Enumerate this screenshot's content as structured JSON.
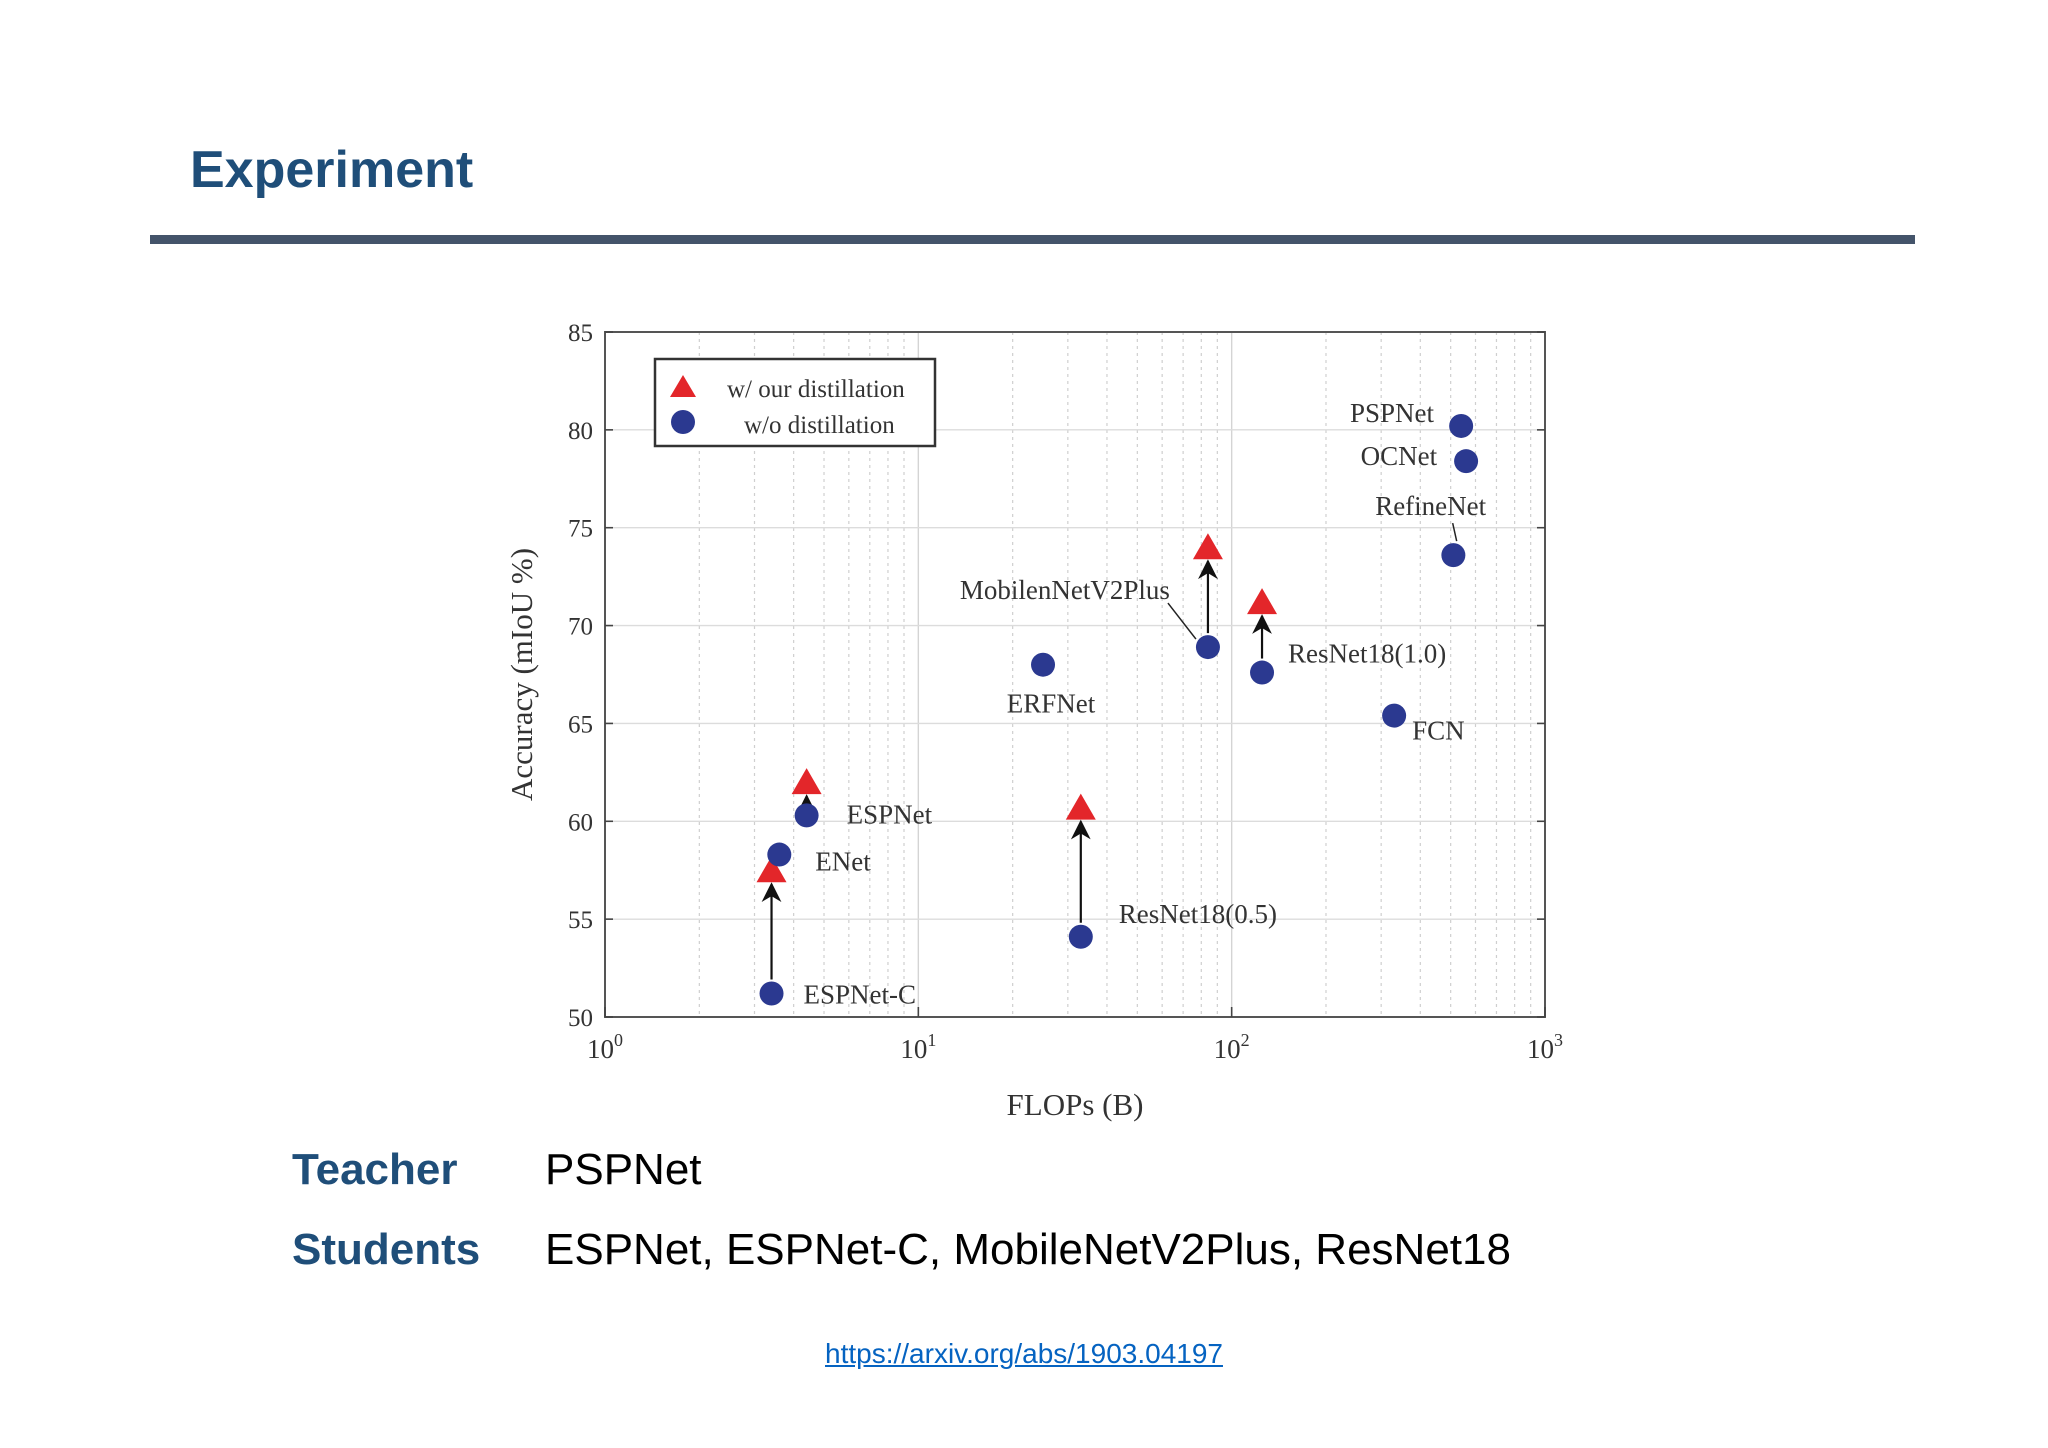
{
  "slide": {
    "title": "Experiment",
    "teacher_label": "Teacher",
    "teacher_value": "PSPNet",
    "students_label": "Students",
    "students_value": "ESPNet, ESPNet-C, MobileNetV2Plus, ResNet18",
    "link": "https://arxiv.org/abs/1903.04197"
  },
  "colors": {
    "title": "#1f4e79",
    "rule": "#44546a",
    "distill_marker": "#e3262a",
    "baseline_marker": "#2b3990",
    "link": "#0563c1"
  },
  "chart_data": {
    "type": "scatter",
    "xlabel": "FLOPs (B)",
    "ylabel": "Accuracy (mIoU %)",
    "xscale": "log",
    "xlim": [
      1,
      1000
    ],
    "ylim": [
      50,
      85
    ],
    "x_ticks": [
      {
        "value": 1,
        "base": "10",
        "exp": "0"
      },
      {
        "value": 10,
        "base": "10",
        "exp": "1"
      },
      {
        "value": 100,
        "base": "10",
        "exp": "2"
      },
      {
        "value": 1000,
        "base": "10",
        "exp": "3"
      }
    ],
    "y_ticks": [
      "50",
      "55",
      "60",
      "65",
      "70",
      "75",
      "80",
      "85"
    ],
    "grid": true,
    "legend_placement": "top-left",
    "legend": {
      "distilled": "w/ our distillation",
      "baseline": "w/o distillation"
    },
    "series": [
      {
        "key": "distilled",
        "name": "w/ our distillation",
        "marker": "triangle",
        "points": [
          {
            "model": "ESPNet-C",
            "x": 3.4,
            "y": 57.5
          },
          {
            "model": "ESPNet",
            "x": 4.4,
            "y": 62.0
          },
          {
            "model": "ResNet18(0.5)",
            "x": 33,
            "y": 60.7
          },
          {
            "model": "MobilenNetV2Plus",
            "x": 84,
            "y": 74.0
          },
          {
            "model": "ResNet18(1.0)",
            "x": 125,
            "y": 71.2
          }
        ]
      },
      {
        "key": "baseline",
        "name": "w/o distillation",
        "marker": "circle",
        "points": [
          {
            "model": "ESPNet-C",
            "x": 3.4,
            "y": 51.2
          },
          {
            "model": "ESPNet",
            "x": 4.4,
            "y": 60.3
          },
          {
            "model": "ENet",
            "x": 3.6,
            "y": 58.3
          },
          {
            "model": "ResNet18(0.5)",
            "x": 33,
            "y": 54.1
          },
          {
            "model": "ERFNet",
            "x": 25,
            "y": 68.0
          },
          {
            "model": "MobilenNetV2Plus",
            "x": 84,
            "y": 68.9
          },
          {
            "model": "ResNet18(1.0)",
            "x": 125,
            "y": 67.6
          },
          {
            "model": "FCN",
            "x": 330,
            "y": 65.4
          },
          {
            "model": "RefineNet",
            "x": 510,
            "y": 73.6
          },
          {
            "model": "OCNet",
            "x": 560,
            "y": 78.4
          },
          {
            "model": "PSPNet",
            "x": 540,
            "y": 80.2
          }
        ]
      }
    ],
    "arrows": [
      {
        "model": "ESPNet-C",
        "x": 3.4,
        "from": 51.2,
        "to": 57.5
      },
      {
        "model": "ESPNet",
        "x": 4.4,
        "from": 60.3,
        "to": 62.0
      },
      {
        "model": "ResNet18(0.5)",
        "x": 33,
        "from": 54.1,
        "to": 60.7
      },
      {
        "model": "MobilenNetV2Plus",
        "x": 84,
        "from": 68.9,
        "to": 74.0
      },
      {
        "model": "ResNet18(1.0)",
        "x": 125,
        "from": 67.6,
        "to": 71.2
      }
    ],
    "annotations": [
      {
        "text": "PSPNet",
        "x": 520,
        "y": 80.2,
        "anchor": "end",
        "dx": -22,
        "dy": -4
      },
      {
        "text": "OCNet",
        "x": 540,
        "y": 78.4,
        "anchor": "end",
        "dx": -24,
        "dy": 4
      },
      {
        "text": "RefineNet",
        "x": 500,
        "y": 73.6,
        "anchor": "middle",
        "dx": -20,
        "dy": -40
      },
      {
        "text": "MobilenNetV2Plus",
        "x": 84,
        "y": 68.9,
        "anchor": "end",
        "dx": -38,
        "dy": -48
      },
      {
        "text": "ResNet18(1.0)",
        "x": 125,
        "y": 67.6,
        "anchor": "start",
        "dx": 26,
        "dy": -10
      },
      {
        "text": "ERFNet",
        "x": 25,
        "y": 68.0,
        "anchor": "middle",
        "dx": 8,
        "dy": 48
      },
      {
        "text": "FCN",
        "x": 330,
        "y": 65.4,
        "anchor": "start",
        "dx": 18,
        "dy": 24
      },
      {
        "text": "ESPNet",
        "x": 4.4,
        "y": 60.3,
        "anchor": "start",
        "dx": 40,
        "dy": 8
      },
      {
        "text": "ENet",
        "x": 3.6,
        "y": 58.3,
        "anchor": "start",
        "dx": 36,
        "dy": 16
      },
      {
        "text": "ResNet18(0.5)",
        "x": 33,
        "y": 54.1,
        "anchor": "start",
        "dx": 38,
        "dy": -14
      },
      {
        "text": "ESPNet-C",
        "x": 3.4,
        "y": 51.2,
        "anchor": "start",
        "dx": 32,
        "dy": 10
      }
    ]
  }
}
